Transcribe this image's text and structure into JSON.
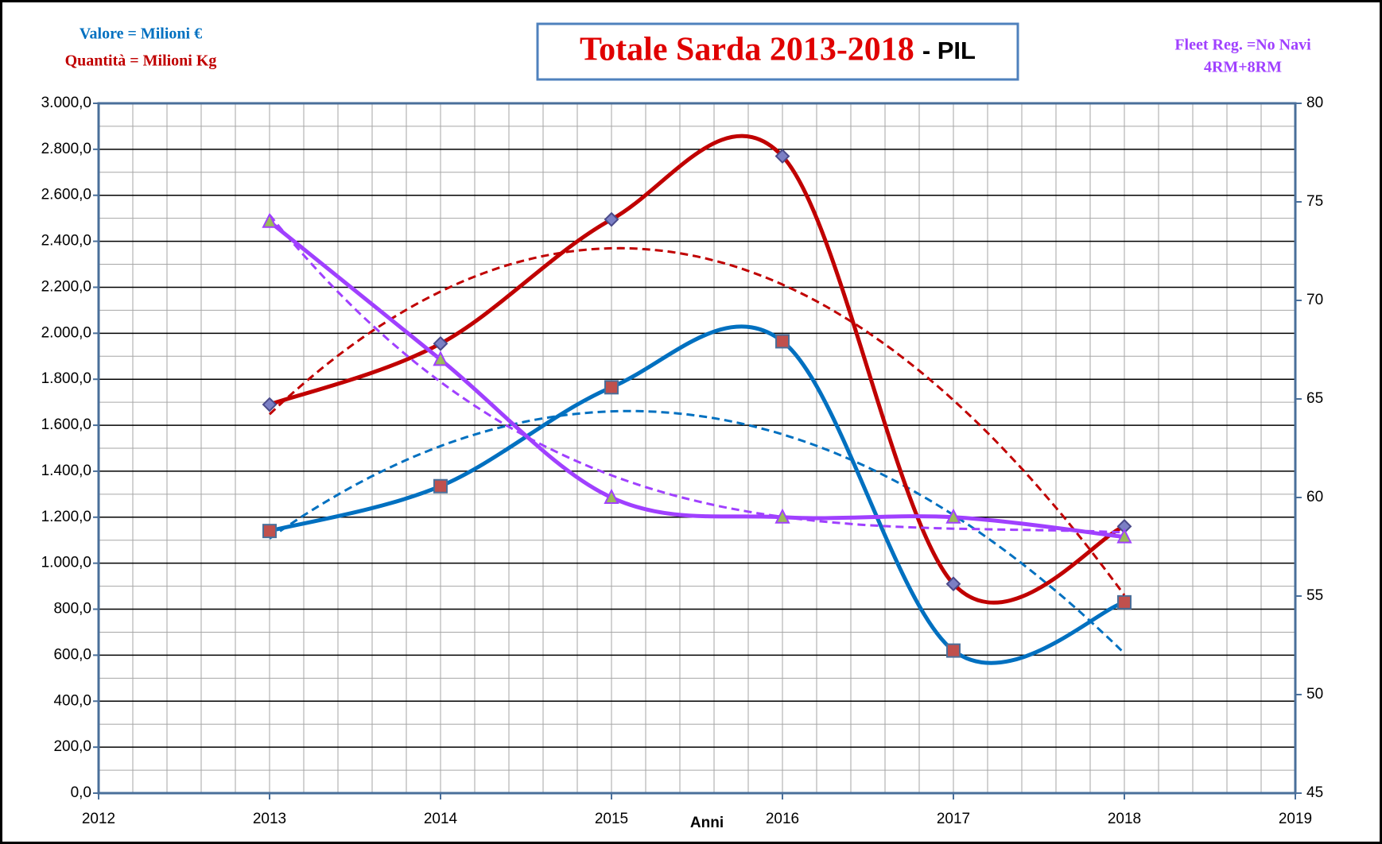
{
  "chart_data": {
    "type": "line",
    "title": "Totale Sarda 2013-2018",
    "title_suffix": "- PIL",
    "xlabel": "Anni",
    "annotations": [
      "4RM+8RM"
    ],
    "x": [
      2013,
      2014,
      2015,
      2016,
      2017,
      2018
    ],
    "xlim": [
      2012,
      2019
    ],
    "xticks": [
      2012,
      2013,
      2014,
      2015,
      2016,
      2017,
      2018,
      2019
    ],
    "ylim": [
      0,
      3000
    ],
    "yticks": [
      {
        "value": 0,
        "label": "0,0"
      },
      {
        "value": 200,
        "label": "200,0"
      },
      {
        "value": 400,
        "label": "400,0"
      },
      {
        "value": 600,
        "label": "600,0"
      },
      {
        "value": 800,
        "label": "800,0"
      },
      {
        "value": 1000,
        "label": "1.000,0"
      },
      {
        "value": 1200,
        "label": "1.200,0"
      },
      {
        "value": 1400,
        "label": "1.400,0"
      },
      {
        "value": 1600,
        "label": "1.600,0"
      },
      {
        "value": 1800,
        "label": "1.800,0"
      },
      {
        "value": 2000,
        "label": "2.000,0"
      },
      {
        "value": 2200,
        "label": "2.200,0"
      },
      {
        "value": 2400,
        "label": "2.400,0"
      },
      {
        "value": 2600,
        "label": "2.600,0"
      },
      {
        "value": 2800,
        "label": "2.800,0"
      },
      {
        "value": 3000,
        "label": "3.000,0"
      }
    ],
    "y2lim": [
      45,
      80
    ],
    "y2ticks": [
      45,
      50,
      55,
      60,
      65,
      70,
      75,
      80
    ],
    "grid": true,
    "minor_grid": true,
    "smooth": true,
    "series": [
      {
        "name": "Valore = Milioni €",
        "color": "#0070c0",
        "marker": "square",
        "marker_color": "#c0504d",
        "trendline": "poly2",
        "values": [
          1140,
          1335,
          1765,
          1965,
          620,
          830
        ]
      },
      {
        "name": "Quantità = Milioni Kg",
        "color": "#c00000",
        "marker": "diamond",
        "marker_color": "#7b7fc4",
        "trendline": "poly2",
        "values": [
          1690,
          1955,
          2495,
          2770,
          910,
          1160
        ]
      },
      {
        "name": "Fleet Reg. =No Navi",
        "color": "#a040ff",
        "marker": "triangle",
        "marker_color": "#9bbb59",
        "trendline": "poly3",
        "axis": "y2",
        "values": [
          74,
          67,
          60,
          59,
          59,
          58
        ]
      }
    ]
  }
}
